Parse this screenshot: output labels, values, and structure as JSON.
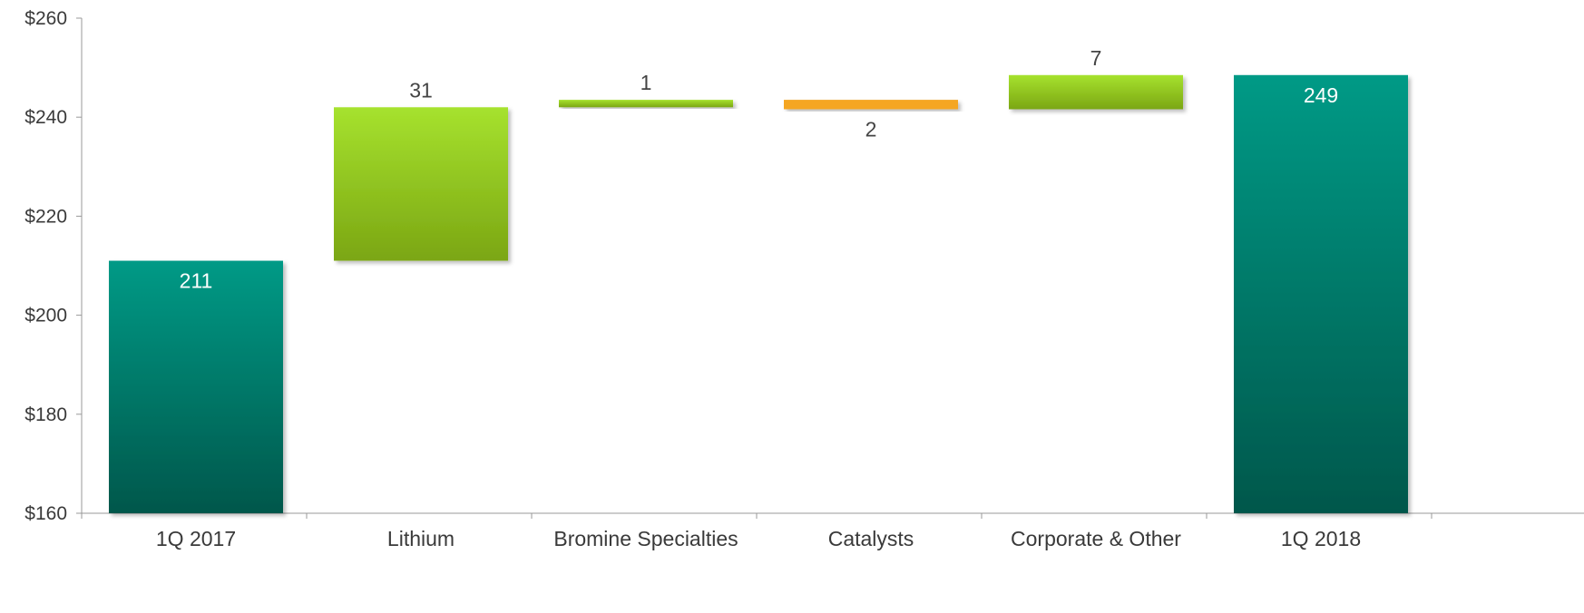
{
  "chart_data": {
    "type": "bar",
    "subtype": "waterfall",
    "categories": [
      "1Q 2017",
      "Lithium",
      "Bromine Specialties",
      "Catalysts",
      "Corporate & Other",
      "1Q 2018"
    ],
    "steps": [
      {
        "category": "1Q 2017",
        "kind": "total",
        "start": 160,
        "end": 211,
        "label": "211"
      },
      {
        "category": "Lithium",
        "kind": "increase",
        "start": 211,
        "end": 242,
        "label": "31"
      },
      {
        "category": "Bromine Specialties",
        "kind": "increase",
        "start": 242,
        "end": 243.5,
        "label": "1"
      },
      {
        "category": "Catalysts",
        "kind": "decrease",
        "start": 243.5,
        "end": 241.6,
        "label": "2"
      },
      {
        "category": "Corporate & Other",
        "kind": "increase",
        "start": 241.6,
        "end": 248.5,
        "label": "7"
      },
      {
        "category": "1Q 2018",
        "kind": "total",
        "start": 160,
        "end": 248.5,
        "label": "249"
      }
    ],
    "ylim": [
      160,
      260
    ],
    "yticks": [
      "$160",
      "$180",
      "$200",
      "$220",
      "$240",
      "$260"
    ],
    "ytick_values": [
      160,
      180,
      200,
      220,
      240,
      260
    ],
    "grid": false,
    "legend": "none",
    "colors": {
      "total_top": "#009a86",
      "total_bottom": "#00574b",
      "increase_top": "#a6e22e",
      "increase_bottom": "#7ba613",
      "decrease": "#f5a623",
      "total_label": "#ffffff",
      "other_label": "#444444",
      "axis": "#999999"
    }
  }
}
